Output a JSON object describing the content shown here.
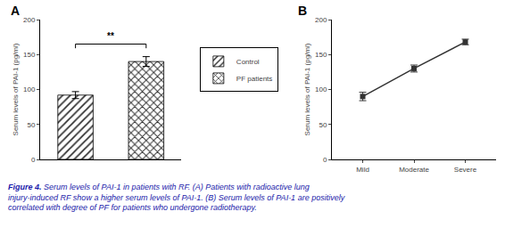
{
  "chart_data": [
    {
      "type": "bar",
      "title": "A",
      "categories": [
        "Control",
        "PF patients"
      ],
      "values": [
        92,
        140
      ],
      "errors": [
        5,
        7
      ],
      "colors": [
        "#b0b0b0",
        "#d8d8d8"
      ],
      "ylabel": "Serum levels of PAI-1 (pg/ml)",
      "ylim": [
        0,
        200
      ],
      "yticks": [
        0,
        50,
        100,
        150,
        200
      ],
      "grid": false,
      "legend": "right",
      "tick_labels": "y",
      "annotations": [
        {
          "text": "**",
          "x": [
            "Control",
            "PF patients"
          ],
          "y": 165
        }
      ]
    },
    {
      "type": "line",
      "title": "B",
      "categories": [
        "Mild",
        "Moderate",
        "Severe"
      ],
      "values": [
        90,
        130,
        168
      ],
      "errors": [
        6,
        5,
        4
      ],
      "color": "#333333",
      "marker": "square",
      "line_style": "solid",
      "ylabel": "Serum levels of PAI-1 (pg/ml)",
      "ylim": [
        0,
        200
      ],
      "yticks": [
        0,
        50,
        100,
        150,
        200
      ],
      "grid": false
    }
  ],
  "caption_bold": "Figure 4.",
  "caption_text": " Serum levels of PAI-1 in patients with RF. (A) Patients with radioactive lung injury-induced RF show a higher serum levels of PAI-1. (B) Serum levels of PAI-1 are positively correlated with degree of PF for patients who undergone radiotherapy."
}
